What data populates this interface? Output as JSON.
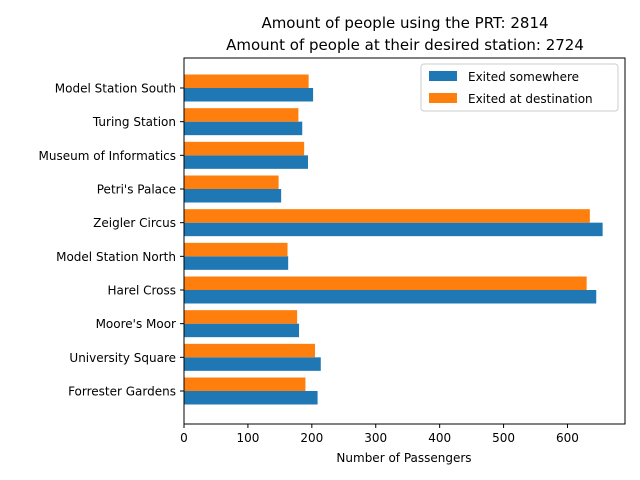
{
  "chart_data": {
    "type": "bar",
    "orientation": "horizontal",
    "title_line1": "Amount of people using the PRT: 2814",
    "title_line2": "Amount of people at their desired station: 2724",
    "xlabel": "Number of Passengers",
    "ylabel": "",
    "xlim": [
      0,
      690
    ],
    "xticks": [
      0,
      100,
      200,
      300,
      400,
      500,
      600
    ],
    "categories": [
      "Forrester Gardens",
      "University Square",
      "Moore's Moor",
      "Harel Cross",
      "Model Station North",
      "Zeigler Circus",
      "Petri's Palace",
      "Museum of Informatics",
      "Turing Station",
      "Model Station South"
    ],
    "series": [
      {
        "name": "Exited somewhere",
        "color": "#1f77b4",
        "values": [
          209,
          214,
          180,
          645,
          163,
          655,
          152,
          194,
          185,
          202
        ]
      },
      {
        "name": "Exited at destination",
        "color": "#ff7f0e",
        "values": [
          190,
          205,
          177,
          630,
          162,
          635,
          148,
          188,
          179,
          195
        ]
      }
    ],
    "legend_position": "top-right",
    "grid": false
  }
}
